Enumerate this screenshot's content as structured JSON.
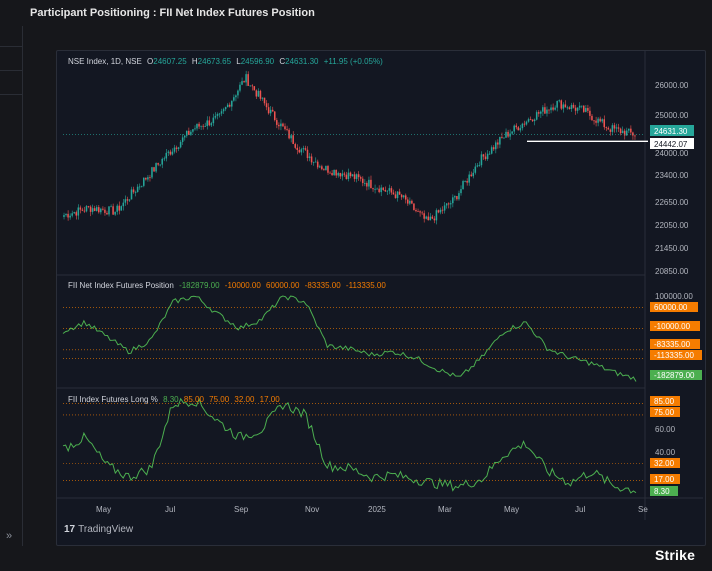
{
  "panel": {
    "title": "Participant Positioning : FII Net Index Futures Position"
  },
  "legend": {
    "symbol": "NSE Index, 1D, NSE",
    "open_label": "O",
    "open": "24607.25",
    "high_label": "H",
    "high": "24673.65",
    "low_label": "L",
    "low": "24596.90",
    "close_label": "C",
    "close": "24631.30",
    "change": "+11.95 (+0.05%)"
  },
  "indicator1": {
    "label": "FII Net Index Futures Position",
    "values": [
      "-182879.00",
      "-10000.00",
      "60000.00",
      "-83335.00",
      "-113335.00"
    ]
  },
  "indicator2": {
    "label": "FII Index Futures Long %",
    "values": [
      "8.30",
      "85.00",
      "75.00",
      "32.00",
      "17.00"
    ]
  },
  "price_axis": {
    "ticks": [
      "26000.00",
      "25000.00",
      "24000.00",
      "23400.00",
      "22650.00",
      "22050.00",
      "21450.00",
      "20850.00"
    ],
    "last_price": "24631.30",
    "support_level": "24442.07"
  },
  "ind1_axis": {
    "ticks": [
      "100000.00",
      "60000.00",
      "-10000.00",
      "-83335.00",
      "-113335.00",
      "-182879.00"
    ]
  },
  "ind2_axis": {
    "ticks": [
      "85.00",
      "75.00",
      "60.00",
      "40.00",
      "32.00",
      "17.00",
      "8.30"
    ]
  },
  "time_axis": {
    "labels": [
      "May",
      "Jul",
      "Sep",
      "Nov",
      "2025",
      "Mar",
      "May",
      "Jul",
      "Se"
    ]
  },
  "footer": {
    "tradingview": "TradingView",
    "brand": "Strike"
  },
  "colors": {
    "up": "#26a69a",
    "down": "#ef5350",
    "line": "#4caf50",
    "orange": "#f57c00",
    "bg": "#131722",
    "grid": "#2a2e39"
  },
  "chart_data": [
    {
      "type": "candlestick",
      "title": "NSE Index, 1D, NSE",
      "x": [
        "May",
        "Jul",
        "Sep",
        "Nov",
        "2025",
        "Mar",
        "May",
        "Jul",
        "Se"
      ],
      "y_ticks": [
        26000,
        25000,
        24000,
        23400,
        22650,
        22050,
        21450,
        20850
      ],
      "close_approx": [
        22400,
        22600,
        22500,
        23300,
        24100,
        24800,
        25100,
        26200,
        25200,
        24300,
        23700,
        23500,
        23200,
        22900,
        22200,
        22800,
        23900,
        24600,
        25100,
        25500,
        25300,
        24800,
        24631
      ],
      "horizontal_lines": [
        24631.3,
        24442.07
      ]
    },
    {
      "type": "line",
      "title": "FII Net Index Futures Position",
      "horizontal_lines": [
        60000,
        -10000,
        -83335,
        -113335
      ],
      "y_ticks": [
        100000,
        60000,
        -10000,
        -83335,
        -113335,
        -182879
      ],
      "last": -182879
    },
    {
      "type": "line",
      "title": "FII Index Futures Long %",
      "horizontal_lines": [
        85,
        75,
        32,
        17
      ],
      "y_ticks": [
        85,
        75,
        60,
        40,
        32,
        17,
        8.3
      ],
      "last": 8.3
    }
  ]
}
